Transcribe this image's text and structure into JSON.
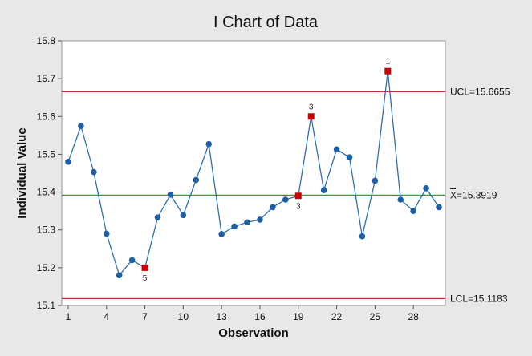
{
  "chart_data": {
    "type": "line",
    "title": "I Chart of Data",
    "xlabel": "Observation",
    "ylabel": "Individual Value",
    "xlim": [
      0.5,
      30.5
    ],
    "ylim": [
      15.1,
      15.8
    ],
    "x_ticks": [
      1,
      4,
      7,
      10,
      13,
      16,
      19,
      22,
      25,
      28
    ],
    "y_ticks": [
      "15.1",
      "15.2",
      "15.3",
      "15.4",
      "15.5",
      "15.6",
      "15.7",
      "15.8"
    ],
    "series": [
      {
        "name": "Data",
        "x": [
          1,
          2,
          3,
          4,
          5,
          6,
          7,
          8,
          9,
          10,
          11,
          12,
          13,
          14,
          15,
          16,
          17,
          18,
          19,
          20,
          21,
          22,
          23,
          24,
          25,
          26,
          27,
          28,
          29,
          30
        ],
        "values": [
          15.48,
          15.575,
          15.453,
          15.29,
          15.18,
          15.22,
          15.2,
          15.333,
          15.393,
          15.339,
          15.432,
          15.527,
          15.289,
          15.309,
          15.32,
          15.327,
          15.36,
          15.38,
          15.39,
          15.6,
          15.405,
          15.513,
          15.492,
          15.283,
          15.43,
          15.72,
          15.38,
          15.35,
          15.41,
          15.36
        ]
      }
    ],
    "reference_lines": [
      {
        "name": "UCL",
        "value": 15.6655,
        "label": "UCL=15.6655",
        "color": "#c0392b"
      },
      {
        "name": "Center",
        "value": 15.3919,
        "label": "=15.3919",
        "symbol": "X",
        "color": "#3a9a3a"
      },
      {
        "name": "LCL",
        "value": 15.1183,
        "label": "LCL=15.1183",
        "color": "#c0392b"
      }
    ],
    "flagged_points": [
      {
        "x": 7,
        "label": "5",
        "position": "below"
      },
      {
        "x": 19,
        "label": "3",
        "position": "below"
      },
      {
        "x": 20,
        "label": "3",
        "position": "above"
      },
      {
        "x": 26,
        "label": "1",
        "position": "above"
      }
    ],
    "colors": {
      "line": "#2e6fb5",
      "point": "#1f5fa8",
      "flag_point": "#cc0000",
      "plot_bg": "#ffffff",
      "frame": "#999999",
      "outer_bg": "#e8e8e8"
    }
  }
}
